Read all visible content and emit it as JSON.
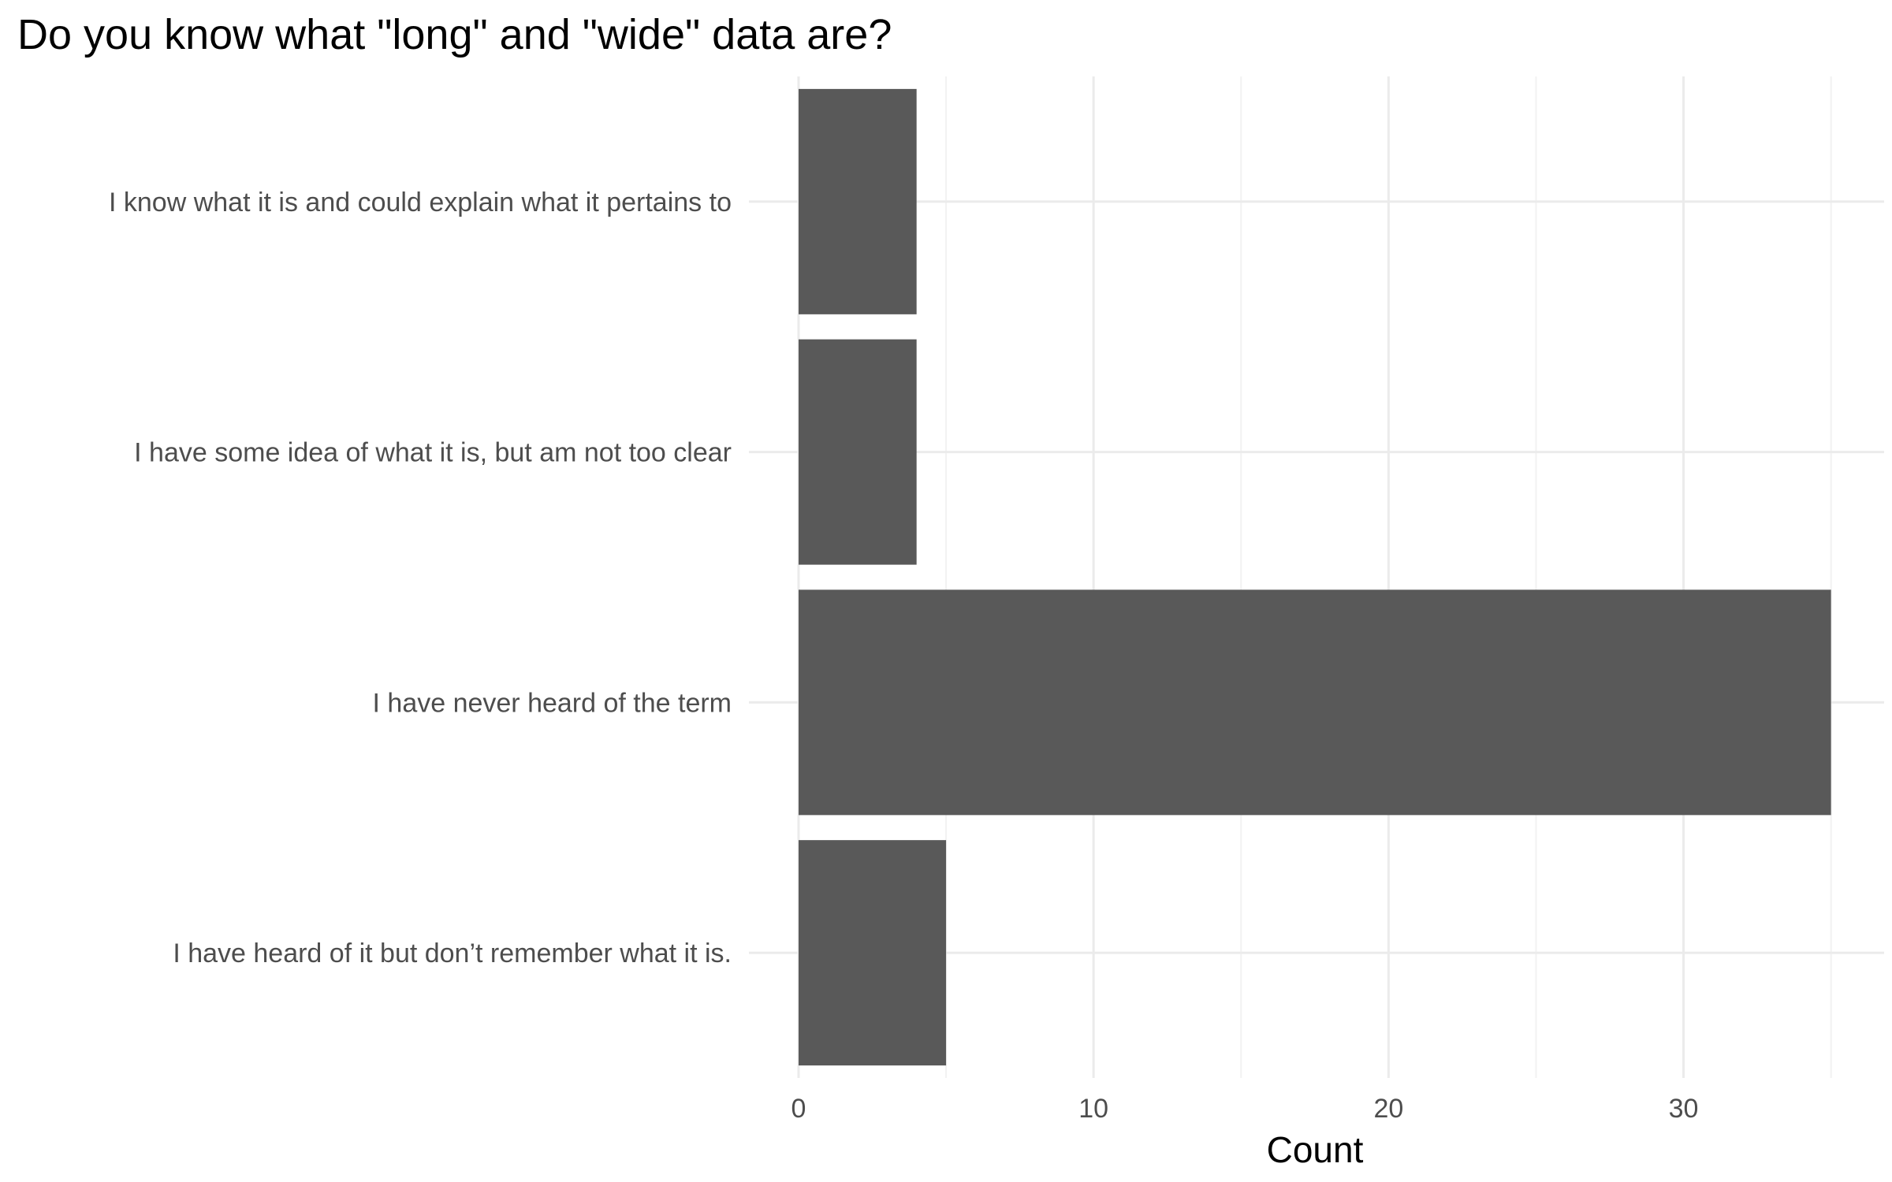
{
  "chart_data": {
    "type": "bar",
    "orientation": "horizontal",
    "title": "Do you know what \"long\" and \"wide\" data are?",
    "xlabel": "Count",
    "ylabel": "",
    "categories": [
      "I know what it is and could explain what it pertains to",
      "I have some idea of what it is, but am not too clear",
      "I have never heard of the term",
      "I have heard of it but don’t remember what it is."
    ],
    "values": [
      4,
      4,
      35,
      5
    ],
    "xlim": [
      0,
      36.8
    ],
    "x_ticks": [
      0,
      10,
      20,
      30
    ],
    "x_tick_labels": [
      "0",
      "10",
      "20",
      "30"
    ],
    "grid": true,
    "legend": "none",
    "colors": {
      "bar": "#595959",
      "grid_major": "#ebebeb",
      "grid_minor": "#f2f2f2",
      "background": "#ffffff"
    }
  }
}
